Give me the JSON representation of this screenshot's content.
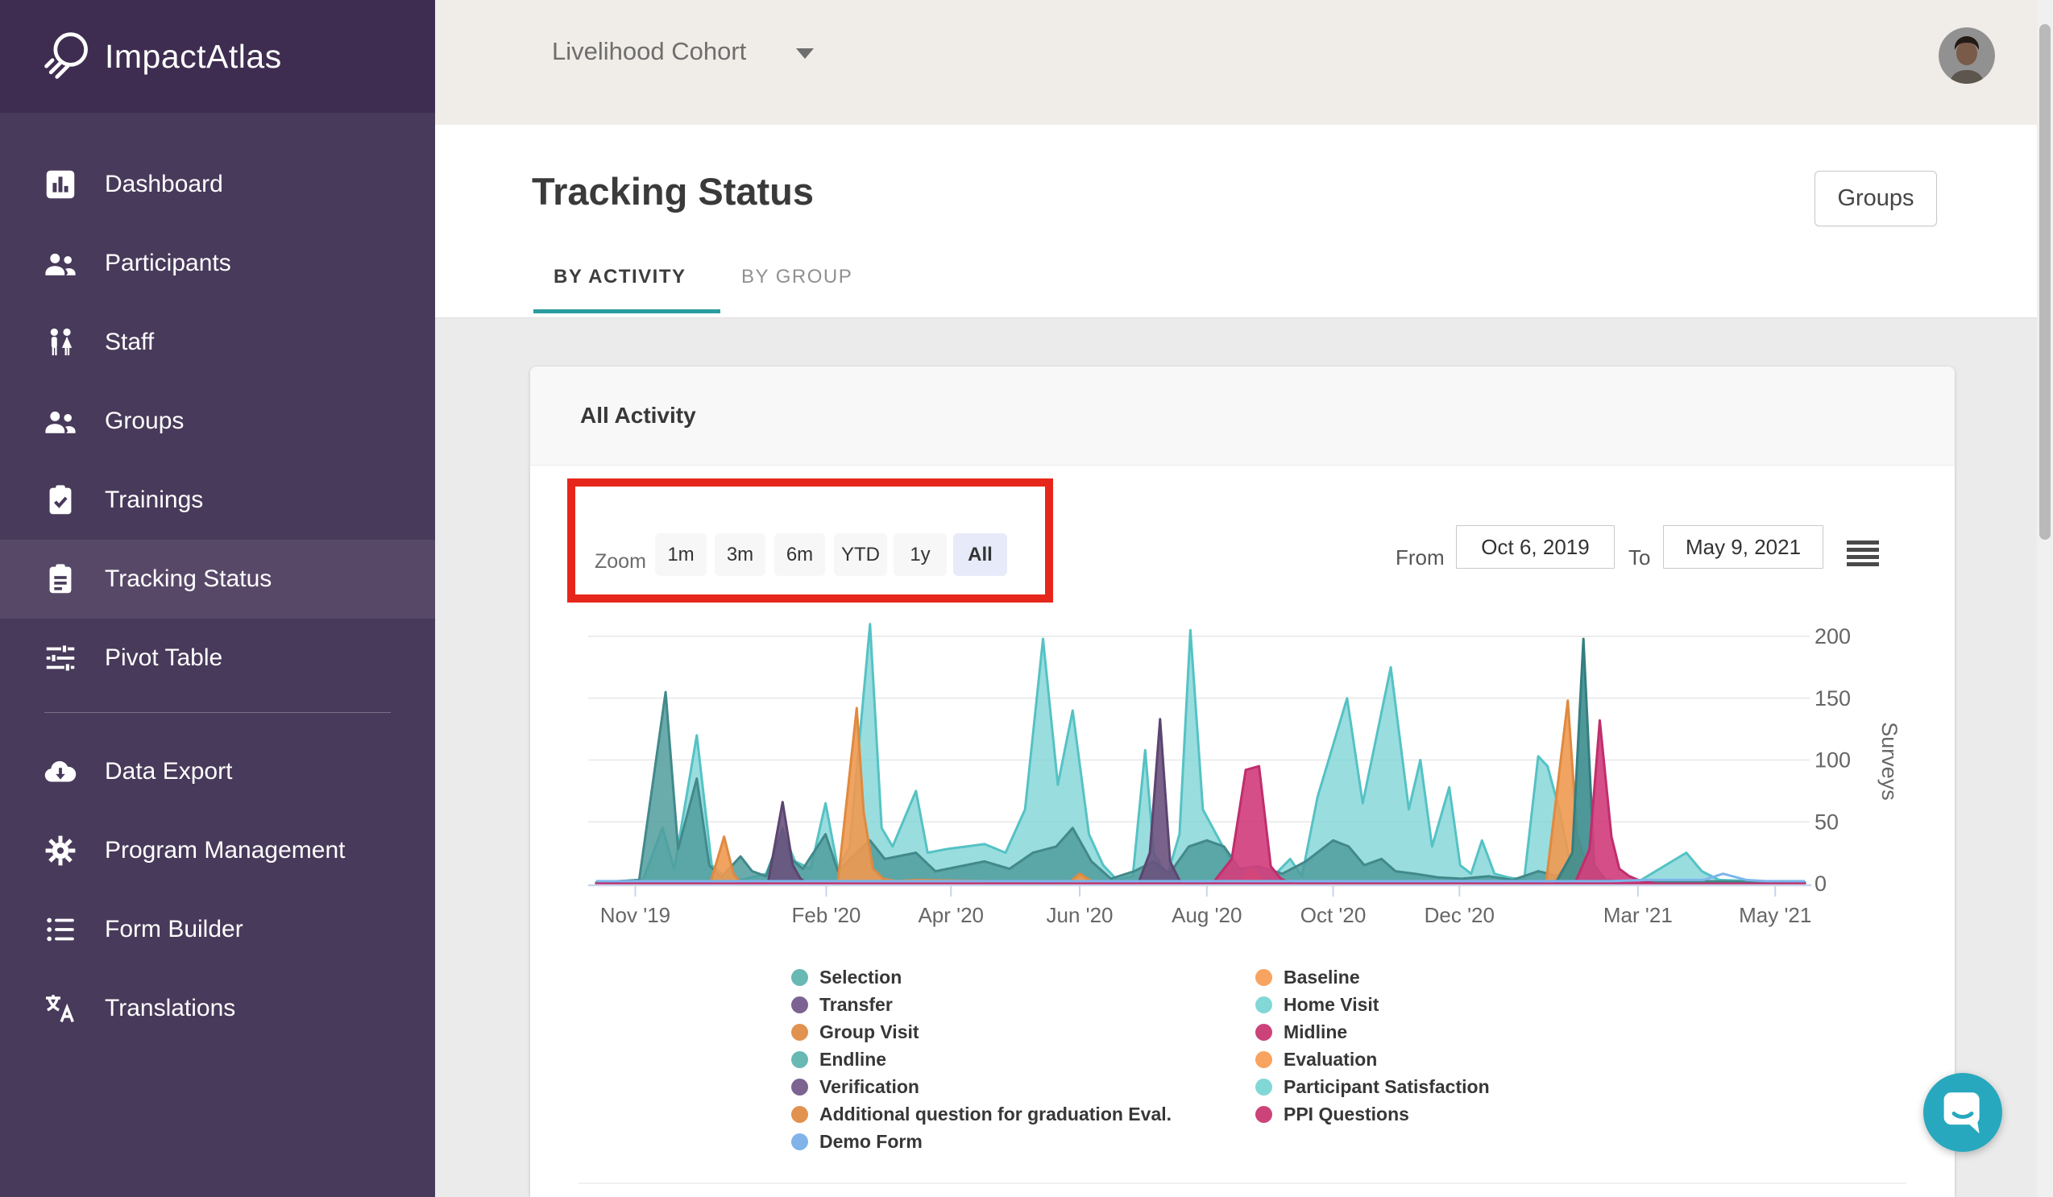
{
  "app": {
    "logo_text": "ImpactAtlas"
  },
  "sidebar": {
    "sections": [
      {
        "items": [
          {
            "id": "dashboard",
            "label": "Dashboard",
            "icon": "dashboard-icon",
            "active": false
          },
          {
            "id": "participants",
            "label": "Participants",
            "icon": "people-icon",
            "active": false
          },
          {
            "id": "staff",
            "label": "Staff",
            "icon": "staff-icon",
            "active": false
          },
          {
            "id": "groups",
            "label": "Groups",
            "icon": "people-icon",
            "active": false
          },
          {
            "id": "trainings",
            "label": "Trainings",
            "icon": "clipboard-check-icon",
            "active": false
          },
          {
            "id": "tracking-status",
            "label": "Tracking Status",
            "icon": "clipboard-list-icon",
            "active": true
          },
          {
            "id": "pivot-table",
            "label": "Pivot Table",
            "icon": "tune-icon",
            "active": false
          }
        ]
      },
      {
        "items": [
          {
            "id": "data-export",
            "label": "Data Export",
            "icon": "cloud-download-icon",
            "active": false
          },
          {
            "id": "program-management",
            "label": "Program Management",
            "icon": "gear-icon",
            "active": false
          },
          {
            "id": "form-builder",
            "label": "Form Builder",
            "icon": "list-icon",
            "active": false
          },
          {
            "id": "translations",
            "label": "Translations",
            "icon": "translate-icon",
            "active": false
          }
        ]
      }
    ]
  },
  "topbar": {
    "cohort": "Livelihood Cohort"
  },
  "page": {
    "title": "Tracking Status",
    "tabs": [
      {
        "label": "BY ACTIVITY",
        "active": true
      },
      {
        "label": "BY GROUP",
        "active": false
      }
    ],
    "groups_button": "Groups"
  },
  "card": {
    "title": "All Activity",
    "zoom": {
      "label": "Zoom",
      "options": [
        "1m",
        "3m",
        "6m",
        "YTD",
        "1y",
        "All"
      ],
      "selected": "All"
    },
    "range": {
      "from_label": "From",
      "from_value": "Oct 6, 2019",
      "to_label": "To",
      "to_value": "May 9, 2021"
    }
  },
  "annotation": {
    "type": "highlight-box",
    "target": "zoom-controls",
    "color": "#e7261b"
  },
  "chart_data": {
    "type": "area",
    "title": "All Activity",
    "xlabel": "",
    "ylabel": "Surveys",
    "x_range": [
      "Oct 6, 2019",
      "May 9, 2021"
    ],
    "ylim": [
      0,
      215
    ],
    "grid": true,
    "legend_position": "bottom",
    "y_ticks": [
      0,
      50,
      100,
      150,
      200
    ],
    "x_ticks": [
      {
        "label": "Nov '19",
        "f": 0.0323
      },
      {
        "label": "Feb '20",
        "f": 0.1903
      },
      {
        "label": "Apr '20",
        "f": 0.2935
      },
      {
        "label": "Jun '20",
        "f": 0.4
      },
      {
        "label": "Aug '20",
        "f": 0.5052
      },
      {
        "label": "Oct '20",
        "f": 0.6097
      },
      {
        "label": "Dec '20",
        "f": 0.7142
      },
      {
        "label": "Mar '21",
        "f": 0.8619
      },
      {
        "label": "May '21",
        "f": 0.9755
      }
    ],
    "point_format": "[fraction_of_x_axis, surveys]",
    "series": [
      {
        "name": "Home Visit",
        "fill": "#7dd4d6",
        "stroke": "#55c2c4",
        "opacity": 0.78,
        "points": [
          [
            0,
            1
          ],
          [
            0.0387,
            3
          ],
          [
            0.0548,
            45
          ],
          [
            0.0645,
            12
          ],
          [
            0.0832,
            120
          ],
          [
            0.0955,
            15
          ],
          [
            0.1058,
            6
          ],
          [
            0.1194,
            3
          ],
          [
            0.1406,
            8
          ],
          [
            0.1542,
            42
          ],
          [
            0.1645,
            18
          ],
          [
            0.1774,
            12
          ],
          [
            0.1897,
            65
          ],
          [
            0.2,
            12
          ],
          [
            0.2097,
            30
          ],
          [
            0.2265,
            210
          ],
          [
            0.2361,
            45
          ],
          [
            0.2452,
            30
          ],
          [
            0.2645,
            75
          ],
          [
            0.2742,
            25
          ],
          [
            0.2903,
            28
          ],
          [
            0.3213,
            32
          ],
          [
            0.3387,
            25
          ],
          [
            0.3548,
            60
          ],
          [
            0.3697,
            198
          ],
          [
            0.3819,
            80
          ],
          [
            0.3942,
            140
          ],
          [
            0.4077,
            40
          ],
          [
            0.4194,
            15
          ],
          [
            0.431,
            3
          ],
          [
            0.4439,
            6
          ],
          [
            0.4542,
            108
          ],
          [
            0.4613,
            25
          ],
          [
            0.4723,
            6
          ],
          [
            0.4826,
            40
          ],
          [
            0.4916,
            205
          ],
          [
            0.5019,
            60
          ],
          [
            0.5174,
            32
          ],
          [
            0.5303,
            10
          ],
          [
            0.5419,
            4
          ],
          [
            0.5581,
            4
          ],
          [
            0.5742,
            20
          ],
          [
            0.5839,
            6
          ],
          [
            0.5968,
            70
          ],
          [
            0.6213,
            150
          ],
          [
            0.6342,
            65
          ],
          [
            0.6574,
            175
          ],
          [
            0.6723,
            60
          ],
          [
            0.6819,
            100
          ],
          [
            0.6916,
            30
          ],
          [
            0.7058,
            78
          ],
          [
            0.7148,
            15
          ],
          [
            0.7239,
            8
          ],
          [
            0.7329,
            35
          ],
          [
            0.7432,
            8
          ],
          [
            0.7548,
            5
          ],
          [
            0.7677,
            3
          ],
          [
            0.7794,
            103
          ],
          [
            0.7871,
            95
          ],
          [
            0.7968,
            60
          ],
          [
            0.8052,
            20
          ],
          [
            0.8129,
            5
          ],
          [
            0.8323,
            2
          ],
          [
            0.8645,
            3
          ],
          [
            0.9019,
            25
          ],
          [
            0.9148,
            10
          ],
          [
            0.929,
            3
          ],
          [
            0.9613,
            2
          ],
          [
            1,
            1
          ]
        ]
      },
      {
        "name": "Selection",
        "fill": "#509c9e",
        "stroke": "#42898b",
        "opacity": 0.85,
        "points": [
          [
            0,
            1
          ],
          [
            0.0355,
            3
          ],
          [
            0.0574,
            155
          ],
          [
            0.0677,
            28
          ],
          [
            0.0832,
            85
          ],
          [
            0.0935,
            15
          ],
          [
            0.1032,
            5
          ],
          [
            0.1194,
            22
          ],
          [
            0.129,
            10
          ],
          [
            0.1406,
            6
          ],
          [
            0.1542,
            45
          ],
          [
            0.1613,
            20
          ],
          [
            0.171,
            12
          ],
          [
            0.1897,
            40
          ],
          [
            0.2,
            10
          ],
          [
            0.2155,
            25
          ],
          [
            0.2265,
            35
          ],
          [
            0.2387,
            20
          ],
          [
            0.2645,
            25
          ],
          [
            0.2806,
            10
          ],
          [
            0.3213,
            18
          ],
          [
            0.3419,
            12
          ],
          [
            0.3613,
            25
          ],
          [
            0.3806,
            30
          ],
          [
            0.3942,
            45
          ],
          [
            0.4097,
            18
          ],
          [
            0.4258,
            4
          ],
          [
            0.4452,
            10
          ],
          [
            0.4613,
            18
          ],
          [
            0.4742,
            8
          ],
          [
            0.4903,
            30
          ],
          [
            0.5052,
            35
          ],
          [
            0.5194,
            30
          ],
          [
            0.5323,
            12
          ],
          [
            0.5484,
            14
          ],
          [
            0.5677,
            8
          ],
          [
            0.5871,
            18
          ],
          [
            0.6097,
            35
          ],
          [
            0.6226,
            30
          ],
          [
            0.6355,
            15
          ],
          [
            0.6497,
            20
          ],
          [
            0.6613,
            10
          ],
          [
            0.6774,
            8
          ],
          [
            0.6968,
            5
          ],
          [
            0.7161,
            4
          ],
          [
            0.7387,
            6
          ],
          [
            0.7581,
            3
          ],
          [
            0.7794,
            10
          ],
          [
            0.7968,
            6
          ],
          [
            0.8194,
            4
          ],
          [
            0.8516,
            2
          ],
          [
            0.9097,
            2
          ],
          [
            1,
            1
          ]
        ]
      },
      {
        "name": "Transfer / Verification",
        "fill": "#6a527e",
        "stroke": "#5c4570",
        "opacity": 0.9,
        "points": [
          [
            0,
            0
          ],
          [
            0.142,
            0
          ],
          [
            0.1542,
            66
          ],
          [
            0.1626,
            15
          ],
          [
            0.169,
            4
          ],
          [
            0.1755,
            0
          ],
          [
            0.4484,
            0
          ],
          [
            0.4581,
            25
          ],
          [
            0.4665,
            133
          ],
          [
            0.4748,
            18
          ],
          [
            0.4839,
            0
          ],
          [
            0.7903,
            0
          ],
          [
            0.8,
            12
          ],
          [
            0.8097,
            18
          ],
          [
            0.8194,
            6
          ],
          [
            0.829,
            0
          ],
          [
            1,
            0
          ]
        ]
      },
      {
        "name": "Group Visit / Baseline",
        "fill": "#ef9950",
        "stroke": "#df8a40",
        "opacity": 0.9,
        "points": [
          [
            0,
            0
          ],
          [
            0.0942,
            0
          ],
          [
            0.1058,
            38
          ],
          [
            0.1135,
            8
          ],
          [
            0.12,
            0
          ],
          [
            0.2,
            2
          ],
          [
            0.2155,
            142
          ],
          [
            0.2213,
            58
          ],
          [
            0.229,
            12
          ],
          [
            0.2374,
            4
          ],
          [
            0.2484,
            2
          ],
          [
            0.2645,
            3
          ],
          [
            0.3213,
            2
          ],
          [
            0.3613,
            0
          ],
          [
            0.3903,
            0
          ],
          [
            0.4,
            8
          ],
          [
            0.4097,
            2
          ],
          [
            0.4194,
            0
          ],
          [
            0.5323,
            0
          ],
          [
            0.5419,
            12
          ],
          [
            0.5497,
            4
          ],
          [
            0.5581,
            0
          ],
          [
            0.7858,
            0
          ],
          [
            0.8039,
            148
          ],
          [
            0.8116,
            40
          ],
          [
            0.8206,
            10
          ],
          [
            0.8323,
            3
          ],
          [
            0.8484,
            0
          ],
          [
            1,
            0
          ]
        ]
      },
      {
        "name": "Endline",
        "fill": "#3f8f91",
        "stroke": "#357e80",
        "opacity": 0.92,
        "points": [
          [
            0.7935,
            0
          ],
          [
            0.8077,
            25
          ],
          [
            0.8168,
            198
          ],
          [
            0.8258,
            15
          ],
          [
            0.8374,
            0
          ]
        ]
      },
      {
        "name": "Midline / PPI Questions",
        "fill": "#d23f7d",
        "stroke": "#c02e6c",
        "opacity": 0.92,
        "points": [
          [
            0,
            0
          ],
          [
            0.5097,
            0
          ],
          [
            0.5258,
            20
          ],
          [
            0.5374,
            92
          ],
          [
            0.5484,
            95
          ],
          [
            0.5581,
            14
          ],
          [
            0.5665,
            4
          ],
          [
            0.5755,
            0
          ],
          [
            0.8097,
            0
          ],
          [
            0.8219,
            28
          ],
          [
            0.8303,
            132
          ],
          [
            0.84,
            38
          ],
          [
            0.8465,
            12
          ],
          [
            0.8548,
            6
          ],
          [
            0.8645,
            2
          ],
          [
            0.8774,
            0
          ],
          [
            1,
            0
          ]
        ]
      },
      {
        "name": "Demo Form",
        "fill": "none",
        "stroke": "#7cb5ec",
        "opacity": 0,
        "points": [
          [
            0,
            2
          ],
          [
            0.84,
            2
          ],
          [
            0.87,
            3
          ],
          [
            0.9161,
            3
          ],
          [
            0.9323,
            8
          ],
          [
            0.9516,
            3
          ],
          [
            0.9677,
            2
          ],
          [
            1,
            2
          ]
        ]
      }
    ],
    "legend": {
      "columns": [
        [
          {
            "label": "Selection",
            "color": "#68b8b3"
          },
          {
            "label": "Transfer",
            "color": "#7c6391"
          },
          {
            "label": "Group Visit",
            "color": "#e1924f"
          },
          {
            "label": "Endline",
            "color": "#68b8b3"
          },
          {
            "label": "Verification",
            "color": "#7c6391"
          },
          {
            "label": "Additional question for graduation Eval.",
            "color": "#e1924f"
          },
          {
            "label": "Demo Form",
            "color": "#80b4e8"
          }
        ],
        [
          {
            "label": "Baseline",
            "color": "#f8a35f"
          },
          {
            "label": "Home Visit",
            "color": "#82d7d7"
          },
          {
            "label": "Midline",
            "color": "#cc4379"
          },
          {
            "label": "Evaluation",
            "color": "#f8a35f"
          },
          {
            "label": "Participant Satisfaction",
            "color": "#82d7d7"
          },
          {
            "label": "PPI Questions",
            "color": "#cc4379"
          }
        ]
      ]
    }
  }
}
